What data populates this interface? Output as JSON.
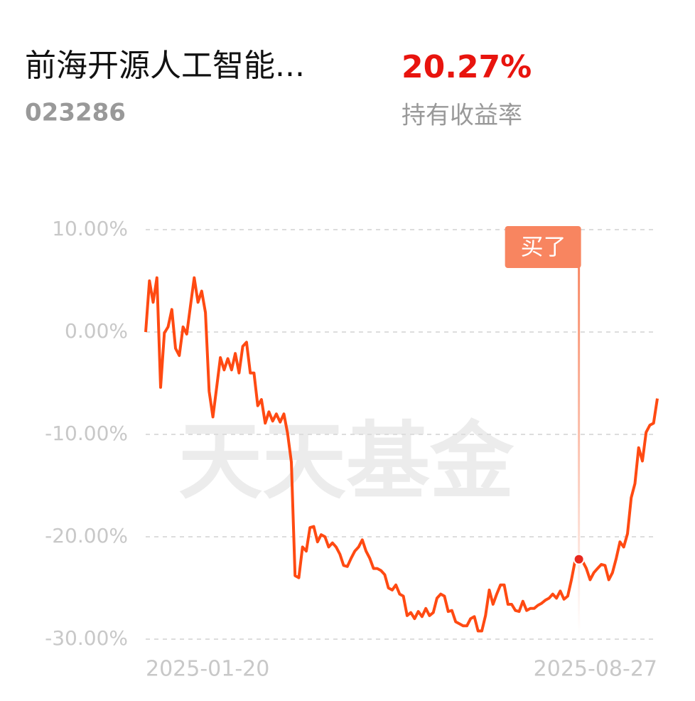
{
  "header": {
    "name": "前海开源人工智能...",
    "code": "023286",
    "return": "20.27%",
    "return_label": "持有收益率"
  },
  "chart_data": {
    "type": "line",
    "watermark": "天天基金",
    "annotation": "买了",
    "buy_index": 116,
    "categories": [
      "2025-01-20",
      null,
      null,
      null,
      null,
      null,
      null,
      null,
      null,
      null,
      null,
      null,
      null,
      null,
      null,
      null,
      null,
      null,
      null,
      null,
      null,
      null,
      null,
      null,
      null,
      null,
      null,
      null,
      null,
      null,
      null,
      null,
      null,
      null,
      null,
      null,
      null,
      null,
      null,
      null,
      null,
      null,
      null,
      null,
      null,
      null,
      null,
      null,
      null,
      null,
      null,
      null,
      null,
      null,
      null,
      null,
      null,
      null,
      null,
      null,
      null,
      null,
      null,
      null,
      null,
      null,
      null,
      null,
      null,
      null,
      null,
      null,
      null,
      null,
      null,
      null,
      null,
      null,
      null,
      null,
      null,
      null,
      null,
      null,
      null,
      null,
      null,
      null,
      null,
      null,
      null,
      null,
      null,
      null,
      null,
      null,
      null,
      null,
      null,
      null,
      null,
      null,
      null,
      null,
      null,
      null,
      null,
      null,
      null,
      null,
      null,
      null,
      null,
      null,
      null,
      null,
      null,
      null,
      null,
      null,
      null,
      null,
      null,
      null,
      null,
      null,
      null,
      null,
      null,
      null,
      null,
      null,
      null,
      null,
      null,
      null,
      null,
      "2025-08-27"
    ],
    "series": [
      {
        "color": "#ff4a12",
        "values": [
          0,
          5.0,
          2.9,
          5.3,
          -5.4,
          -0.1,
          0.5,
          2.2,
          -1.6,
          -2.3,
          0.5,
          -0.2,
          2.6,
          5.3,
          2.9,
          4.0,
          1.9,
          -5.8,
          -8.3,
          -5.4,
          -2.5,
          -3.7,
          -2.6,
          -3.7,
          -2.1,
          -4.0,
          -1.4,
          -1.0,
          -4.0,
          -4.0,
          -7.2,
          -6.6,
          -8.9,
          -7.8,
          -8.7,
          -8.0,
          -8.8,
          -8.0,
          -9.9,
          -12.7,
          -23.8,
          -24.0,
          -21.0,
          -21.4,
          -19.1,
          -19.0,
          -20.5,
          -19.8,
          -20.0,
          -21.0,
          -20.6,
          -21.0,
          -21.7,
          -22.8,
          -22.9,
          -22.1,
          -21.4,
          -21.0,
          -20.3,
          -21.4,
          -22.1,
          -23.1,
          -23.1,
          -23.3,
          -23.7,
          -25.0,
          -25.2,
          -24.7,
          -25.6,
          -25.8,
          -27.7,
          -27.4,
          -28.0,
          -27.3,
          -27.8,
          -27.0,
          -27.7,
          -27.4,
          -26.0,
          -25.6,
          -25.8,
          -27.3,
          -27.2,
          -28.3,
          -28.5,
          -28.7,
          -28.7,
          -28.0,
          -27.8,
          -29.2,
          -29.2,
          -27.7,
          -25.2,
          -26.6,
          -25.6,
          -24.7,
          -24.7,
          -26.6,
          -26.6,
          -27.2,
          -27.3,
          -26.3,
          -27.2,
          -27.0,
          -27.0,
          -26.7,
          -26.5,
          -26.2,
          -26.0,
          -25.6,
          -26.0,
          -25.3,
          -26.1,
          -25.8,
          -24.2,
          -22.3,
          -22.2,
          -22.4,
          -23.1,
          -24.2,
          -23.5,
          -23.1,
          -22.7,
          -22.8,
          -24.2,
          -23.5,
          -22.1,
          -20.5,
          -21.0,
          -19.7,
          -16.2,
          -14.8,
          -11.3,
          -12.6,
          -9.8,
          -9.1,
          -8.9,
          -6.5
        ]
      }
    ],
    "ylim": [
      -30,
      10
    ],
    "yticks": [
      {
        "value": 10,
        "label": "10.00%"
      },
      {
        "value": 0,
        "label": "0.00%"
      },
      {
        "value": -10,
        "label": "-10.00%"
      },
      {
        "value": -20,
        "label": "-20.00%"
      },
      {
        "value": -30,
        "label": "-30.00%"
      }
    ],
    "grid": true
  }
}
